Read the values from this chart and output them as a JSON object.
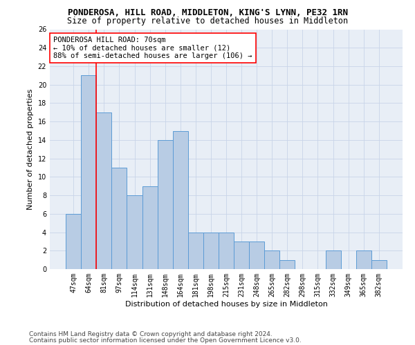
{
  "title1": "PONDEROSA, HILL ROAD, MIDDLETON, KING'S LYNN, PE32 1RN",
  "title2": "Size of property relative to detached houses in Middleton",
  "xlabel": "Distribution of detached houses by size in Middleton",
  "ylabel": "Number of detached properties",
  "categories": [
    "47sqm",
    "64sqm",
    "81sqm",
    "97sqm",
    "114sqm",
    "131sqm",
    "148sqm",
    "164sqm",
    "181sqm",
    "198sqm",
    "215sqm",
    "231sqm",
    "248sqm",
    "265sqm",
    "282sqm",
    "298sqm",
    "315sqm",
    "332sqm",
    "349sqm",
    "365sqm",
    "382sqm"
  ],
  "values": [
    6,
    21,
    17,
    11,
    8,
    9,
    14,
    15,
    4,
    4,
    4,
    3,
    3,
    2,
    1,
    0,
    0,
    2,
    0,
    2,
    1
  ],
  "bar_color": "#b8cce4",
  "bar_edge_color": "#5b9bd5",
  "bar_linewidth": 0.7,
  "grid_color": "#c8d4e8",
  "background_color": "#e8eef6",
  "vline_color": "red",
  "vline_linewidth": 1.2,
  "vline_pos": 1.5,
  "annotation_text": "PONDEROSA HILL ROAD: 70sqm\n← 10% of detached houses are smaller (12)\n88% of semi-detached houses are larger (106) →",
  "annotation_box_color": "white",
  "annotation_box_edge": "red",
  "ylim": [
    0,
    26
  ],
  "yticks": [
    0,
    2,
    4,
    6,
    8,
    10,
    12,
    14,
    16,
    18,
    20,
    22,
    24,
    26
  ],
  "footer1": "Contains HM Land Registry data © Crown copyright and database right 2024.",
  "footer2": "Contains public sector information licensed under the Open Government Licence v3.0.",
  "title1_fontsize": 9,
  "title2_fontsize": 8.5,
  "xlabel_fontsize": 8,
  "ylabel_fontsize": 8,
  "tick_fontsize": 7,
  "annotation_fontsize": 7.5,
  "footer_fontsize": 6.5
}
